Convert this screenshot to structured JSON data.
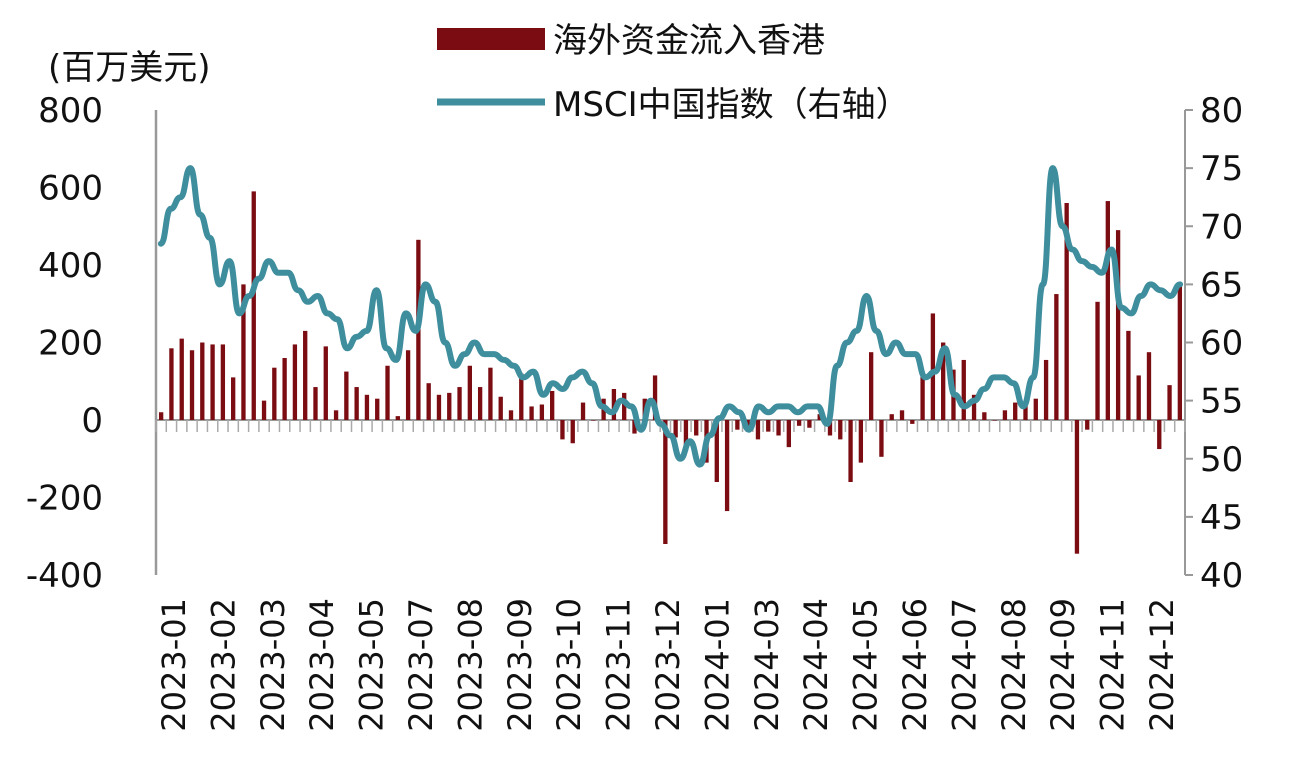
{
  "chart_data": {
    "type": "bar+line",
    "title": "",
    "left_axis": {
      "unit": "(百万美元)",
      "ylim": [
        -400,
        800
      ],
      "ticks": [
        -400,
        -200,
        0,
        200,
        400,
        600,
        800
      ]
    },
    "right_axis": {
      "ylim": [
        40,
        80
      ],
      "ticks": [
        40,
        45,
        50,
        55,
        60,
        65,
        70,
        75,
        80
      ]
    },
    "legend": {
      "placement": "top",
      "bar_label": "海外资金流入香港",
      "line_label": "MSCI中国指数（右轴）"
    },
    "x_labels": [
      "2023-01",
      "2023-02",
      "2023-03",
      "2023-04",
      "2023-05",
      "2023-07",
      "2023-08",
      "2023-09",
      "2023-10",
      "2023-11",
      "2023-12",
      "2024-01",
      "2024-03",
      "2024-04",
      "2024-05",
      "2024-06",
      "2024-07",
      "2024-08",
      "2024-09",
      "2024-11",
      "2024-12"
    ],
    "series": [
      {
        "name": "海外资金流入香港",
        "type": "bar",
        "axis": "left",
        "color": "#7a0c12",
        "values": [
          20,
          185,
          210,
          180,
          200,
          195,
          195,
          110,
          350,
          590,
          50,
          135,
          160,
          195,
          230,
          85,
          190,
          25,
          125,
          85,
          65,
          55,
          140,
          10,
          180,
          465,
          95,
          65,
          70,
          85,
          140,
          85,
          135,
          60,
          25,
          120,
          35,
          40,
          75,
          -50,
          -60,
          45,
          0,
          55,
          80,
          70,
          -35,
          55,
          115,
          -320,
          -45,
          -80,
          -40,
          -110,
          -160,
          -235,
          -25,
          -30,
          -50,
          -30,
          -40,
          -70,
          -15,
          -20,
          15,
          -40,
          -50,
          -160,
          -110,
          175,
          -95,
          15,
          25,
          -10,
          120,
          275,
          200,
          130,
          155,
          65,
          20,
          0,
          25,
          45,
          40,
          55,
          155,
          325,
          560,
          -345,
          -25,
          305,
          565,
          490,
          230,
          115,
          175,
          -75,
          90,
          355
        ],
        "line_values_note": ""
      },
      {
        "name": "MSCI中国指数（右轴）",
        "type": "line",
        "axis": "right",
        "color": "#3e8e9e",
        "values": [
          68.5,
          71.5,
          72.5,
          75,
          71,
          69,
          65,
          67,
          62.5,
          64,
          65.5,
          67,
          66,
          66,
          64.5,
          63.5,
          64,
          62.5,
          62,
          59.5,
          60.5,
          61,
          64.5,
          59.5,
          58.5,
          62.5,
          61,
          65,
          63.5,
          60,
          58,
          59,
          60,
          59,
          59,
          58.5,
          58,
          57,
          57.5,
          55.5,
          56.5,
          56,
          57,
          57.5,
          56.5,
          54.5,
          54,
          55,
          54.5,
          52.5,
          55,
          53,
          52,
          50,
          51.5,
          49.5,
          52,
          53.5,
          54.5,
          54,
          52.5,
          54.5,
          54,
          54.5,
          54.5,
          54,
          54.5,
          54.5,
          53,
          58,
          60,
          61,
          64,
          61,
          59,
          60,
          59,
          59,
          57,
          57.5,
          59.5,
          55.5,
          54.5,
          55,
          56,
          57,
          57,
          56.5,
          54.5,
          57,
          65,
          75,
          70,
          68,
          67,
          66.5,
          66,
          68,
          63,
          62.5,
          64,
          65,
          64.5,
          64,
          65
        ]
      }
    ]
  }
}
